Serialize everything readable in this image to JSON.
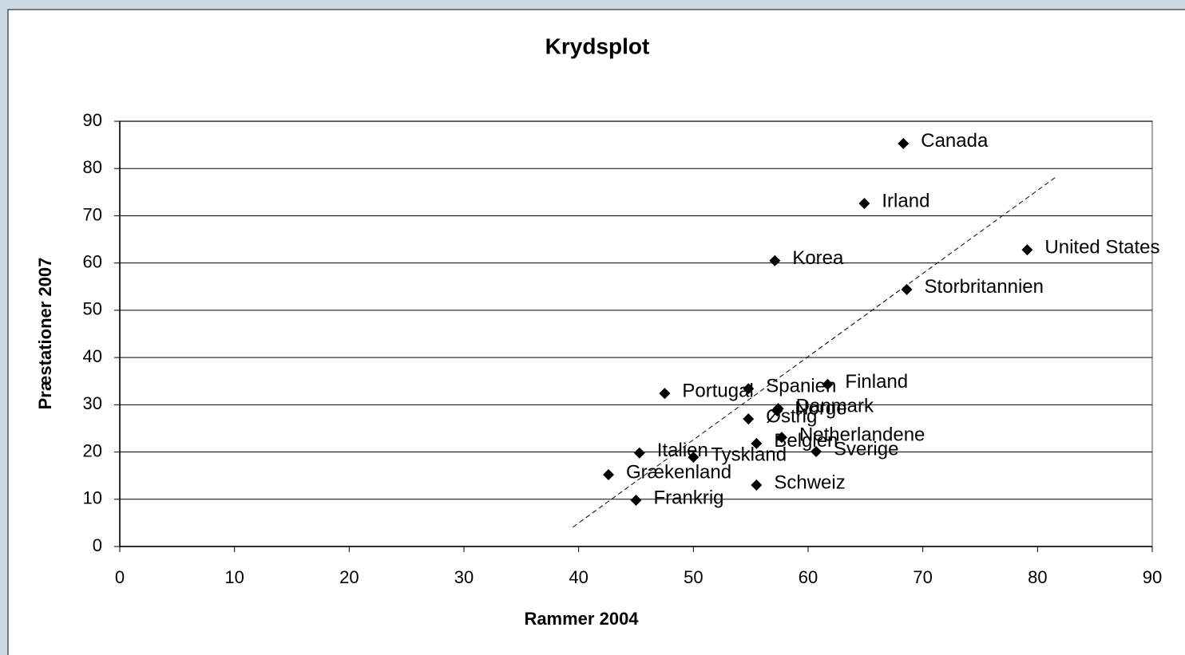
{
  "chart_data": {
    "type": "scatter",
    "title": "Krydsplot",
    "x_label": "Rammer 2004",
    "y_label": "Præstationer 2007",
    "series": [
      {
        "color": "#000000",
        "labels": [
          "Canada",
          "Irland",
          "United States",
          "Korea",
          "Storbritannien",
          "Portugal",
          "Spanien",
          "Finland",
          "Danmark",
          "Norge",
          "Østrig",
          "Netherlandene",
          "Belgien",
          "Sverige",
          "Italien",
          "Tyskland",
          "Grækenland",
          "Schweiz",
          "Frankrig"
        ],
        "x": [
          68.3,
          64.9,
          79.1,
          57.1,
          68.6,
          47.5,
          54.8,
          61.7,
          57.4,
          57.3,
          54.8,
          57.7,
          55.5,
          60.7,
          45.3,
          50.0,
          42.6,
          55.5,
          45.0
        ],
        "values": [
          85.3,
          72.6,
          62.8,
          60.5,
          54.4,
          32.4,
          33.4,
          34.3,
          29.2,
          28.7,
          27.0,
          23.1,
          21.8,
          20.1,
          19.8,
          18.9,
          15.2,
          13.0,
          9.8
        ]
      }
    ],
    "trendline": {
      "x": [
        39.5,
        81.6
      ],
      "values": [
        4.1,
        78.2
      ]
    },
    "xlim": [
      0,
      90
    ],
    "xticks": [
      0,
      10,
      20,
      30,
      40,
      50,
      60,
      70,
      80,
      90
    ],
    "ylim": [
      0,
      90
    ],
    "yticks": [
      0,
      10,
      20,
      30,
      40,
      50,
      60,
      70,
      80,
      90
    ],
    "grid": true
  }
}
